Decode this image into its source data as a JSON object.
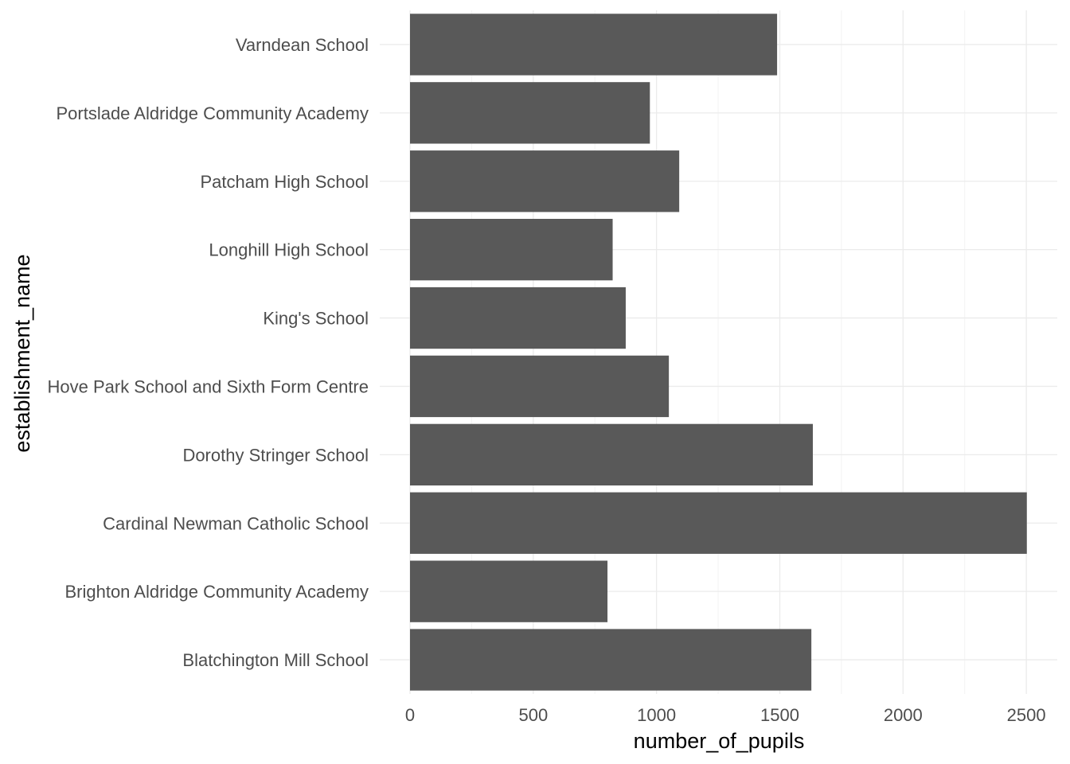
{
  "chart_data": {
    "type": "bar",
    "orientation": "horizontal",
    "title": "",
    "xlabel": "number_of_pupils",
    "ylabel": "establishment_name",
    "categories": [
      "Blatchington Mill School",
      "Brighton Aldridge Community Academy",
      "Cardinal Newman Catholic School",
      "Dorothy Stringer School",
      "Hove Park School and Sixth Form Centre",
      "King's School",
      "Longhill High School",
      "Patcham High School",
      "Portslade Aldridge Community Academy",
      "Varndean School"
    ],
    "values": [
      1628,
      801,
      2502,
      1634,
      1050,
      875,
      822,
      1092,
      973,
      1489
    ],
    "xlim": [
      0,
      2625
    ],
    "x_ticks": [
      0,
      500,
      1000,
      1500,
      2000,
      2500
    ],
    "x_tick_labels": [
      "0",
      "500",
      "1000",
      "1500",
      "2000",
      "2500"
    ],
    "grid": true,
    "legend": "none",
    "colors": {
      "bar": "#595959",
      "grid_major": "#ebebeb",
      "grid_minor": "#f4f4f4",
      "tick_text": "#4d4d4d",
      "title_text": "#000000",
      "background": "#ffffff"
    }
  }
}
